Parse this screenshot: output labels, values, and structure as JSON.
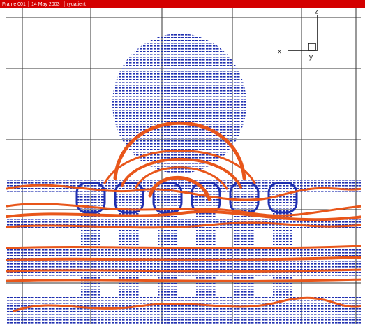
{
  "header": {
    "frame": "Frame 001",
    "date": "14 May 2003",
    "user": "ryuatient"
  },
  "axes": {
    "x": "x",
    "y": "y",
    "z": "z"
  }
}
